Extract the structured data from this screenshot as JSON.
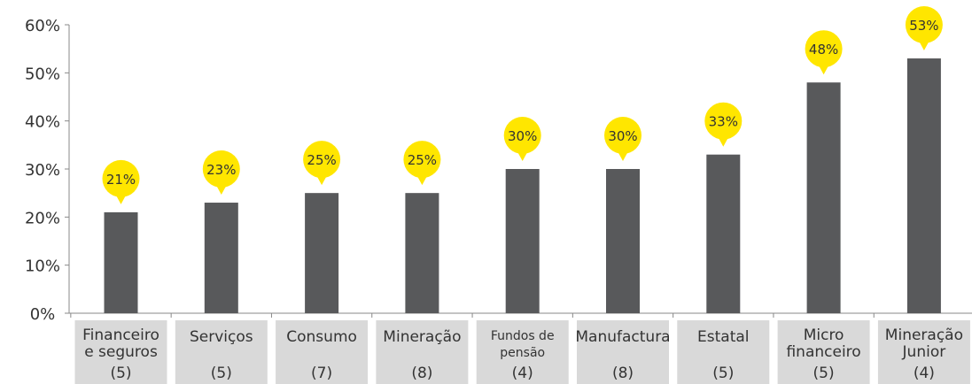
{
  "chart_data": {
    "type": "bar",
    "categories": [
      {
        "lines": [
          "Financeiro",
          "e seguros"
        ],
        "count": "(5)"
      },
      {
        "lines": [
          "Serviços"
        ],
        "count": "(5)"
      },
      {
        "lines": [
          "Consumo"
        ],
        "count": "(7)"
      },
      {
        "lines": [
          "Mineração"
        ],
        "count": "(8)"
      },
      {
        "lines": [
          "Fundos de",
          "pensão"
        ],
        "count": "(4)"
      },
      {
        "lines": [
          "Manufactura"
        ],
        "count": "(8)"
      },
      {
        "lines": [
          "Estatal"
        ],
        "count": "(5)"
      },
      {
        "lines": [
          "Micro",
          "financeiro"
        ],
        "count": "(5)"
      },
      {
        "lines": [
          "Mineração",
          "Junior"
        ],
        "count": "(4)"
      }
    ],
    "values": [
      21,
      23,
      25,
      25,
      30,
      30,
      33,
      48,
      53
    ],
    "data_labels": [
      "21%",
      "23%",
      "25%",
      "25%",
      "30%",
      "30%",
      "33%",
      "48%",
      "53%"
    ],
    "y_ticks": [
      "0%",
      "10%",
      "20%",
      "30%",
      "40%",
      "50%",
      "60%"
    ],
    "ylim": [
      0,
      60
    ],
    "title": "",
    "xlabel": "",
    "ylabel": "",
    "grid": false,
    "colors": {
      "bar": "#58595b",
      "label_bubble": "#ffe600",
      "category_box": "#d9d9d9",
      "axis": "#888888",
      "text": "#333333"
    }
  }
}
